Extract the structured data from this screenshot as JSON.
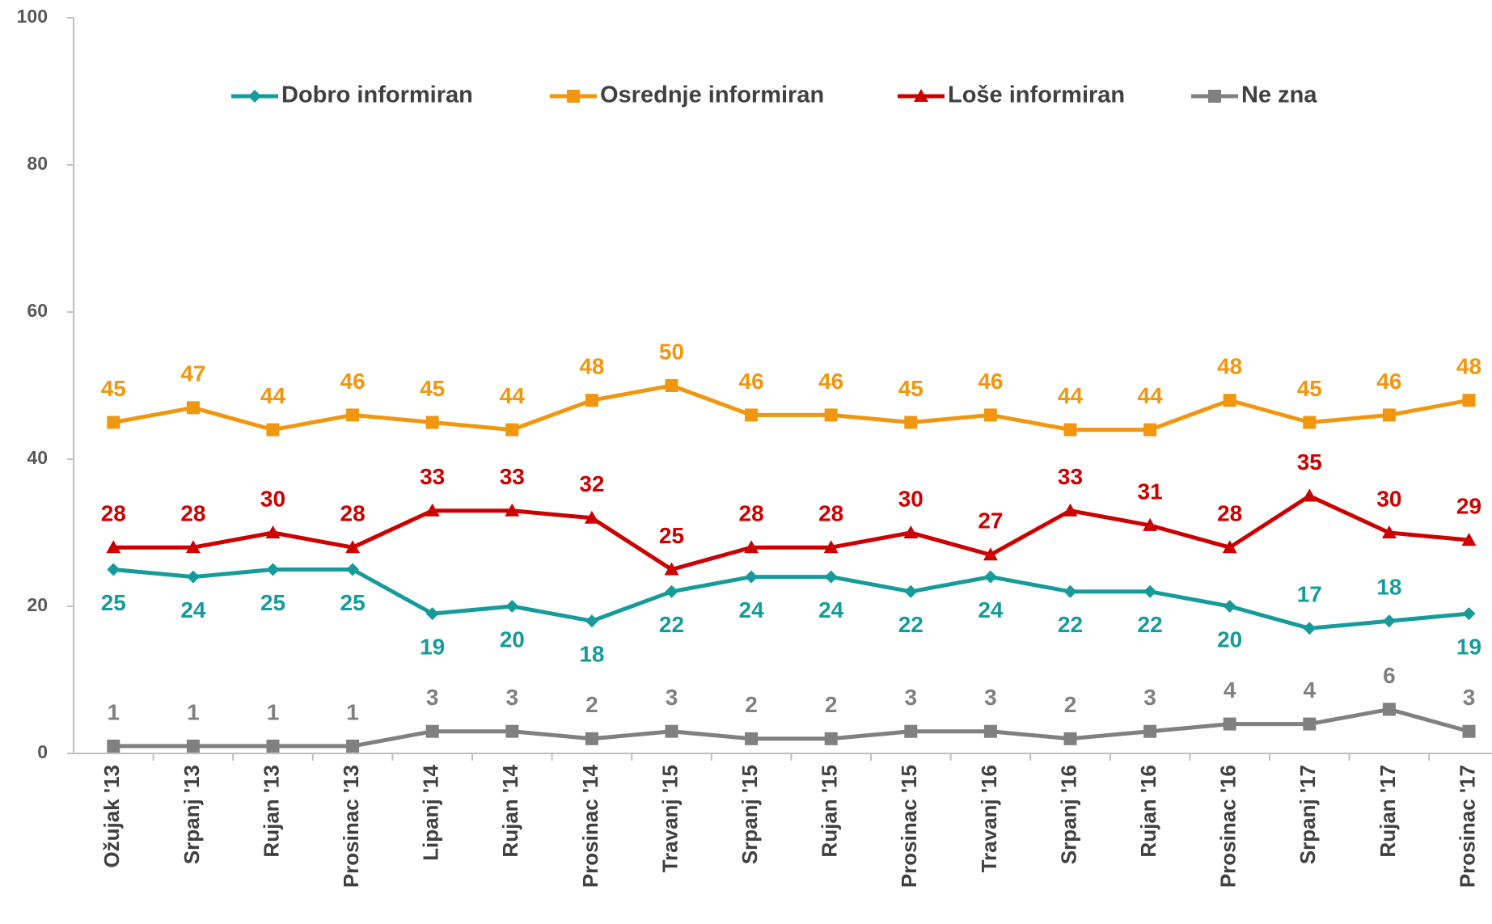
{
  "chart_data": {
    "type": "line",
    "categories": [
      "Ožujak '13",
      "Srpanj '13",
      "Rujan '13",
      "Prosinac '13",
      "Lipanj '14",
      "Rujan '14",
      "Prosinac '14",
      "Travanj '15",
      "Srpanj '15",
      "Rujan '15",
      "Prosinac '15",
      "Travanj '16",
      "Srpanj '16",
      "Rujan '16",
      "Prosinac '16",
      "Srpanj '17",
      "Rujan '17",
      "Prosinac '17"
    ],
    "series": [
      {
        "name": "Dobro informiran",
        "color": "#169b9b",
        "marker": "diamond",
        "values": [
          25,
          24,
          25,
          25,
          19,
          20,
          18,
          22,
          24,
          24,
          22,
          24,
          22,
          22,
          20,
          17,
          18,
          19
        ]
      },
      {
        "name": "Osrednje informiran",
        "color": "#f0960f",
        "marker": "square",
        "values": [
          45,
          47,
          44,
          46,
          45,
          44,
          48,
          50,
          46,
          46,
          45,
          46,
          44,
          44,
          48,
          45,
          46,
          48
        ]
      },
      {
        "name": "Loše informiran",
        "color": "#cc0000",
        "marker": "triangle",
        "values": [
          28,
          28,
          30,
          28,
          33,
          33,
          32,
          25,
          28,
          28,
          30,
          27,
          33,
          31,
          28,
          35,
          30,
          29
        ]
      },
      {
        "name": "Ne zna",
        "color": "#808080",
        "marker": "square",
        "values": [
          1,
          1,
          1,
          1,
          3,
          3,
          2,
          3,
          2,
          2,
          3,
          3,
          2,
          3,
          4,
          4,
          6,
          3
        ]
      }
    ],
    "ylim": [
      0,
      100
    ],
    "yticks": [
      0,
      20,
      40,
      60,
      80,
      100
    ],
    "grid": false,
    "legend": "top"
  }
}
